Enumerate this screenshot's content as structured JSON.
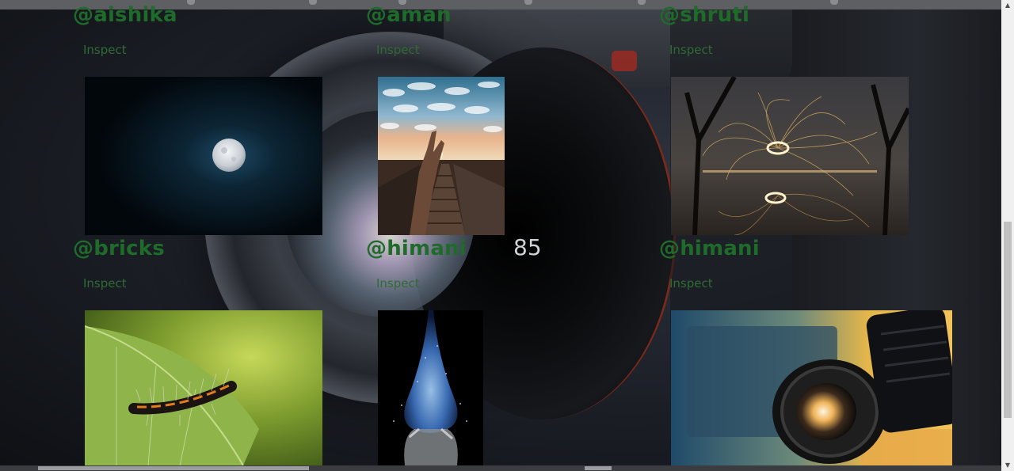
{
  "gallery": {
    "cards": [
      {
        "handle": "@aishika",
        "action": "Inspect",
        "image": "full-moon-night-sky"
      },
      {
        "handle": "@aman",
        "action": "Inspect",
        "image": "hand-sunset-stairs"
      },
      {
        "handle": "@shruti",
        "action": "Inspect",
        "image": "steel-wool-spinning-light"
      },
      {
        "handle": "@bricks",
        "action": "Inspect",
        "image": "caterpillar-on-leaf"
      },
      {
        "handle": "@himani",
        "action": "Inspect",
        "image": "water-drop-hands"
      },
      {
        "handle": "@himani",
        "action": "Inspect",
        "image": "camera-lens-closeup"
      }
    ]
  },
  "background": {
    "lens_marking": "85"
  },
  "colors": {
    "handle": "#1f6b2a",
    "inspect": "#2f6b35",
    "page_bg": "#15171c"
  }
}
